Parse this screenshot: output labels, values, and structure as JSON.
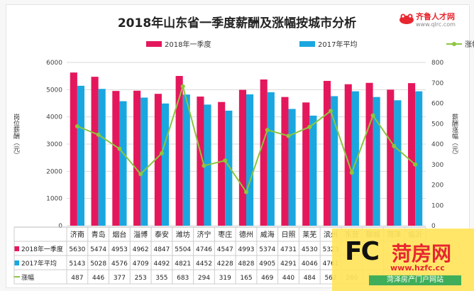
{
  "chart_data": {
    "type": "bar",
    "title": "2018年山东省一季度薪酬及涨幅按城市分析",
    "ylabel": "岗位薪酬（元）",
    "y2label": "薪酬涨幅（元）",
    "ylim": [
      0,
      6000
    ],
    "y2lim": [
      0,
      800
    ],
    "yticks": [
      0,
      1000,
      2000,
      3000,
      4000,
      5000,
      6000
    ],
    "y2ticks": [
      0,
      100,
      200,
      300,
      400,
      500,
      600,
      700,
      800
    ],
    "categories": [
      "济南",
      "青岛",
      "烟台",
      "淄博",
      "泰安",
      "潍坊",
      "济宁",
      "枣庄",
      "德州",
      "威海",
      "日照",
      "莱芜",
      "滨州",
      "东营",
      "聊城",
      "菏泽",
      "临沂"
    ],
    "series": [
      {
        "name": "2018年一季度",
        "type": "bar",
        "color": "#e5175c",
        "row_label": "2018年一季度",
        "values": [
          5630,
          5474,
          4953,
          4962,
          4847,
          5504,
          4746,
          4547,
          4993,
          5374,
          4731,
          4530,
          5323,
          5200,
          5250,
          5000,
          5240
        ]
      },
      {
        "name": "2017年平均",
        "type": "bar",
        "color": "#1aa7e0",
        "row_label": "2017年平均",
        "values": [
          5143,
          5028,
          4576,
          4709,
          4492,
          4821,
          4452,
          4228,
          4828,
          4905,
          4291,
          4046,
          4761,
          4940,
          4730,
          4610,
          4940
        ]
      },
      {
        "name": "涨幅",
        "type": "line",
        "axis": "right",
        "color": "#8cc63f",
        "row_label": "涨幅",
        "values": [
          487,
          446,
          377,
          253,
          355,
          683,
          294,
          319,
          165,
          469,
          440,
          484,
          562,
          260,
          540,
          390,
          300
        ]
      }
    ],
    "table_shown": {
      "2018年一季度": [
        "5630",
        "5474",
        "4953",
        "4962",
        "4847",
        "5504",
        "4746",
        "4547",
        "4993",
        "5374",
        "4731",
        "4530",
        "5323",
        "",
        "",
        "",
        "5240"
      ],
      "2017年平均": [
        "5143",
        "5028",
        "4576",
        "4709",
        "4492",
        "4821",
        "4452",
        "4228",
        "4828",
        "4905",
        "4291",
        "4046",
        "4761",
        "",
        "",
        "",
        ""
      ],
      "涨幅": [
        "487",
        "446",
        "377",
        "253",
        "355",
        "683",
        "294",
        "319",
        "165",
        "469",
        "440",
        "484",
        "562",
        "260",
        "",
        "390",
        ""
      ]
    },
    "legend_position": "top",
    "grid": true
  },
  "logo": {
    "name": "齐鲁人才网",
    "url": "www.qlrc.com"
  },
  "watermark": {
    "brand": "菏房网",
    "letters": "FC",
    "site": "www.hzfc.cc",
    "tagline": "菏泽房产门户网站"
  }
}
